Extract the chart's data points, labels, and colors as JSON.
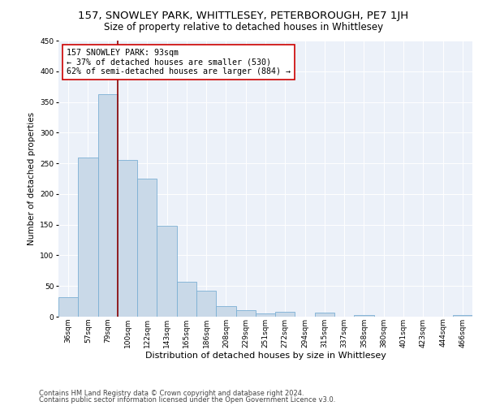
{
  "title": "157, SNOWLEY PARK, WHITTLESEY, PETERBOROUGH, PE7 1JH",
  "subtitle": "Size of property relative to detached houses in Whittlesey",
  "xlabel": "Distribution of detached houses by size in Whittlesey",
  "ylabel": "Number of detached properties",
  "categories": [
    "36sqm",
    "57sqm",
    "79sqm",
    "100sqm",
    "122sqm",
    "143sqm",
    "165sqm",
    "186sqm",
    "208sqm",
    "229sqm",
    "251sqm",
    "272sqm",
    "294sqm",
    "315sqm",
    "337sqm",
    "358sqm",
    "380sqm",
    "401sqm",
    "423sqm",
    "444sqm",
    "466sqm"
  ],
  "values": [
    32,
    260,
    362,
    256,
    225,
    148,
    57,
    43,
    17,
    10,
    5,
    8,
    0,
    6,
    0,
    3,
    0,
    0,
    0,
    0,
    3
  ],
  "bar_color": "#c9d9e8",
  "bar_edge_color": "#7bafd4",
  "subject_line_color": "#8b0000",
  "annotation_line1": "157 SNOWLEY PARK: 93sqm",
  "annotation_line2": "← 37% of detached houses are smaller (530)",
  "annotation_line3": "62% of semi-detached houses are larger (884) →",
  "annotation_box_color": "#ffffff",
  "annotation_box_edge_color": "#cc0000",
  "ylim": [
    0,
    450
  ],
  "yticks": [
    0,
    50,
    100,
    150,
    200,
    250,
    300,
    350,
    400,
    450
  ],
  "footer1": "Contains HM Land Registry data © Crown copyright and database right 2024.",
  "footer2": "Contains public sector information licensed under the Open Government Licence v3.0.",
  "background_color": "#ecf1f9",
  "title_fontsize": 9.5,
  "subtitle_fontsize": 8.5,
  "xlabel_fontsize": 8,
  "ylabel_fontsize": 7.5,
  "tick_fontsize": 6.5,
  "annotation_fontsize": 7.2,
  "footer_fontsize": 6.0
}
